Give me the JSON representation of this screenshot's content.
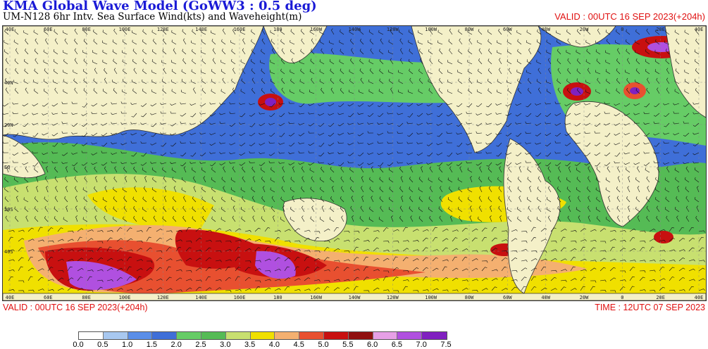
{
  "header": {
    "title": "KMA  Global Wave Model (GoWW3 : 0.5 deg)",
    "subtitle": "UM-N128  6hr Intv. Sea Surface Wind(kts) and Waveheight(m)",
    "valid_top": "VALID : 00UTC 16 SEP 2023(+204h)"
  },
  "footer": {
    "valid_bottom": "VALID : 00UTC 16 SEP 2023(+204h)",
    "time_bottom": "TIME : 12UTC 07 SEP 2023"
  },
  "map": {
    "lat_labels": [
      "40N",
      "20N",
      "EQ",
      "20S",
      "40S"
    ],
    "lon_labels": [
      "40E",
      "60E",
      "80E",
      "100E",
      "120E",
      "140E",
      "160E",
      "180",
      "160W",
      "140W",
      "120W",
      "100W",
      "80W",
      "60W",
      "40W",
      "20W",
      "0",
      "20E",
      "40E"
    ],
    "colors": {
      "land": "#f4f0c8",
      "h_0_5": "#ffffff",
      "h_1_0": "#a8c8f0",
      "h_1_5": "#5a8ee8",
      "h_2_0": "#3f6fd8",
      "h_2_5": "#66cc66",
      "h_3_0": "#55bb55",
      "h_3_5": "#c8e070",
      "h_4_0": "#f0e000",
      "h_4_5": "#f4b070",
      "h_5_0": "#e85030",
      "h_5_5": "#c81010",
      "h_6_0": "#901010",
      "h_6_5": "#e6a0e6",
      "h_7_0": "#b050e0",
      "h_7_5": "#8020c0"
    }
  },
  "colorbar": {
    "labels": [
      "0.0",
      "0.5",
      "1.0",
      "1.5",
      "2.0",
      "2.5",
      "3.0",
      "3.5",
      "4.0",
      "4.5",
      "5.0",
      "5.5",
      "6.0",
      "6.5",
      "7.0",
      "7.5"
    ],
    "colors": [
      "#ffffff",
      "#a8c8f0",
      "#5a8ee8",
      "#3f6fd8",
      "#66cc66",
      "#55bb55",
      "#c8e070",
      "#f0e000",
      "#f4b070",
      "#e85030",
      "#c81010",
      "#901010",
      "#e6a0e6",
      "#b050e0",
      "#8020c0"
    ]
  }
}
